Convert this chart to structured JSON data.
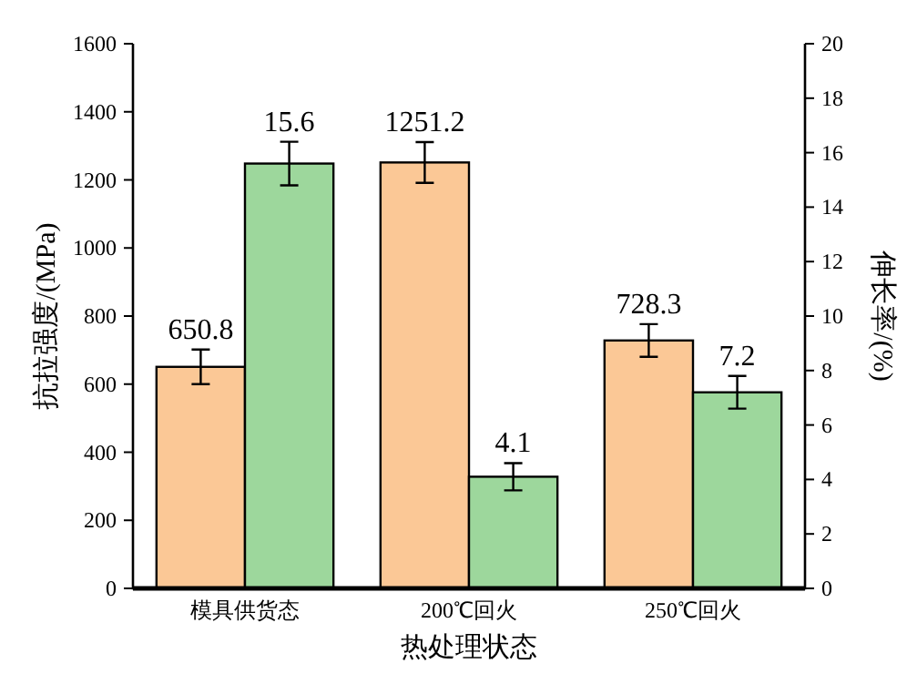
{
  "chart_data": {
    "type": "bar",
    "xlabel": "热处理状态",
    "ylabel": "抗拉强度/(MPa)",
    "y2label": "伸长率/(%)",
    "categories": [
      "模具供货态",
      "200℃回火",
      "250℃回火"
    ],
    "series": [
      {
        "color": "#fbc896",
        "values": [
          650.8,
          1251.2,
          728.3
        ],
        "errors": [
          51,
          60,
          48
        ]
      },
      {
        "color": "#9dd79c",
        "values": [
          15.6,
          4.1,
          7.2
        ],
        "errors": [
          0.8,
          0.5,
          0.6
        ],
        "axis": "y2"
      }
    ],
    "ylim": [
      0,
      1600
    ],
    "yticks": [
      0,
      200,
      400,
      600,
      800,
      1000,
      1200,
      1400,
      1600
    ],
    "y2lim": [
      0,
      20
    ],
    "y2ticks": [
      0,
      2,
      4,
      6,
      8,
      10,
      12,
      14,
      16,
      18,
      20
    ],
    "data_labels": true
  }
}
